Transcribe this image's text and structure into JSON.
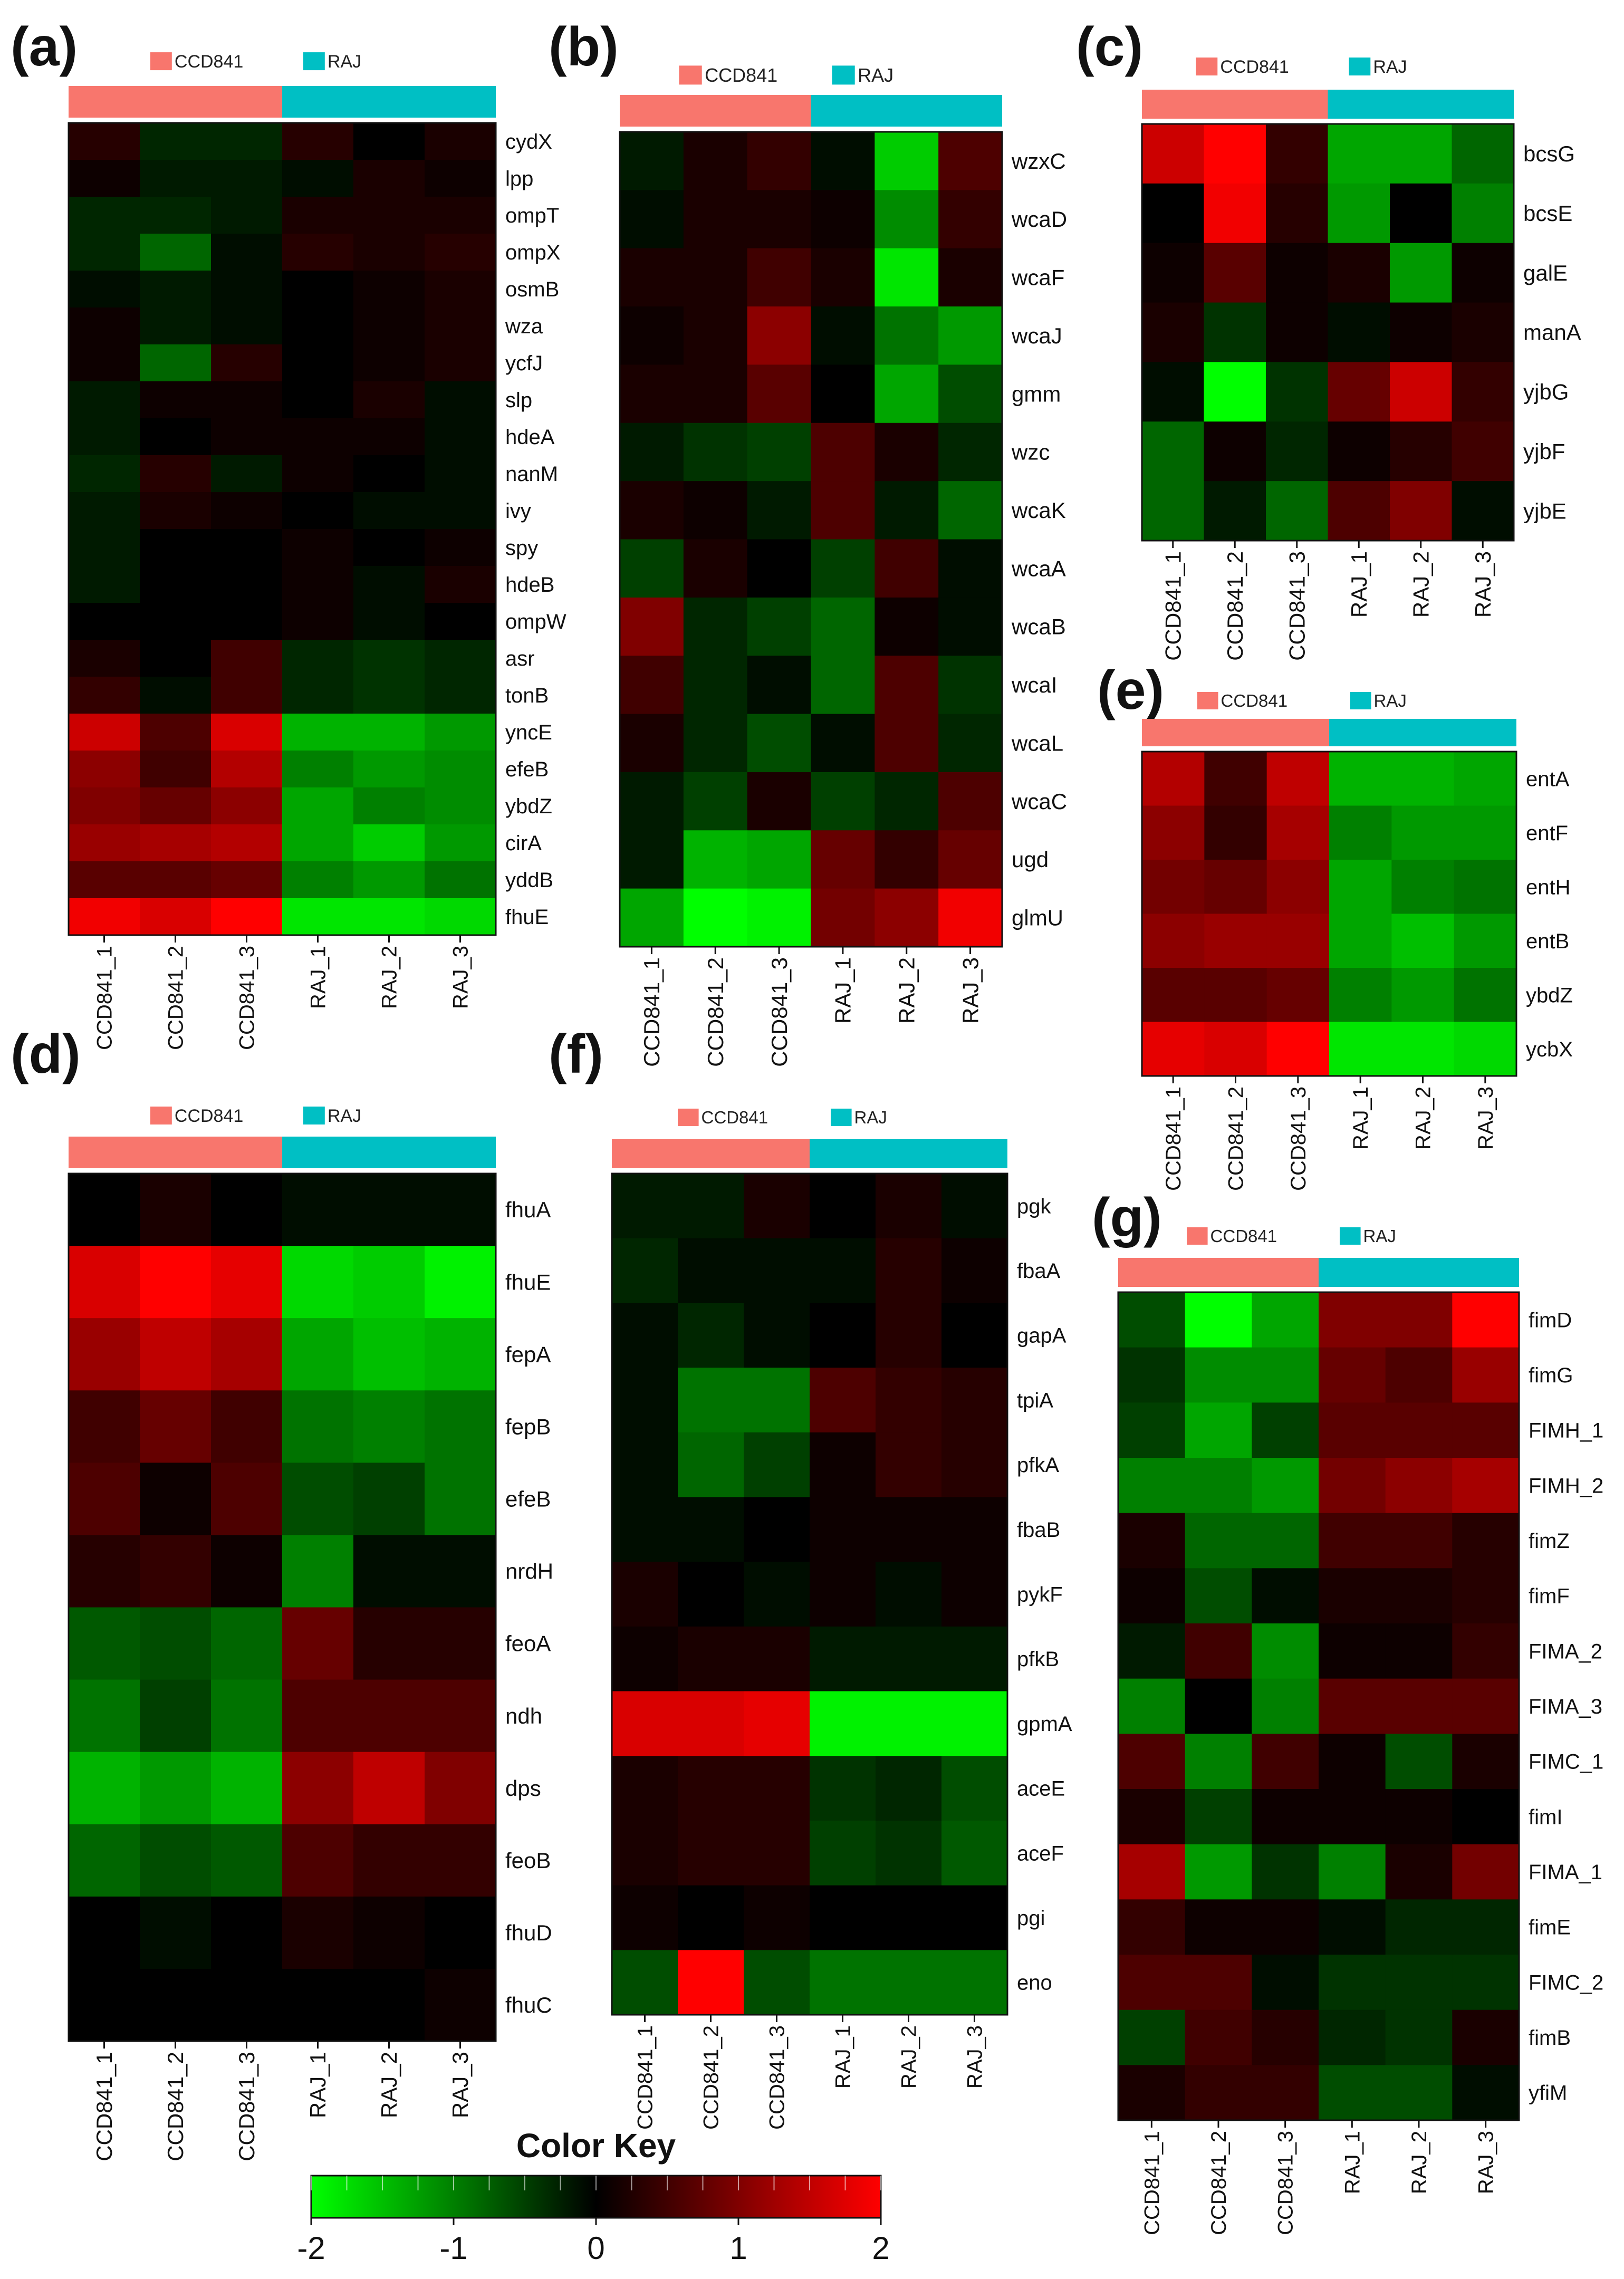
{
  "color_key": {
    "title": "Color Key",
    "ticks": [
      "-2",
      "-1",
      "0",
      "1",
      "2"
    ],
    "colors": [
      "#00ff00",
      "#000000",
      "#ff0000"
    ]
  },
  "group_labels": [
    "CCD841",
    "RAJ"
  ],
  "group_colors": [
    "#f8766d",
    "#00bfc4"
  ],
  "chart_data": [
    {
      "panel": "(a)",
      "type": "heatmap",
      "samples": [
        "CCD841_1",
        "CCD841_2",
        "CCD841_3",
        "RAJ_1",
        "RAJ_2",
        "RAJ_3"
      ],
      "genes": [
        "cydX",
        "lpp",
        "ompT",
        "ompX",
        "osmB",
        "wza",
        "ycfJ",
        "slp",
        "hdeA",
        "nanM",
        "ivy",
        "spy",
        "hdeB",
        "ompW",
        "asr",
        "tonB",
        "yncE",
        "efeB",
        "ybdZ",
        "cirA",
        "yddB",
        "fhuE"
      ],
      "values": [
        [
          0.3,
          -0.3,
          -0.3,
          0.3,
          0.0,
          0.2
        ],
        [
          0.1,
          -0.2,
          -0.2,
          -0.1,
          0.2,
          0.1
        ],
        [
          -0.3,
          -0.3,
          -0.2,
          0.2,
          0.2,
          0.2
        ],
        [
          -0.3,
          -0.8,
          -0.1,
          0.3,
          0.2,
          0.3
        ],
        [
          -0.1,
          -0.2,
          -0.1,
          0.0,
          0.1,
          0.2
        ],
        [
          0.1,
          -0.2,
          -0.1,
          0.0,
          0.1,
          0.2
        ],
        [
          0.1,
          -0.8,
          0.3,
          0.0,
          0.1,
          0.2
        ],
        [
          -0.2,
          0.1,
          0.1,
          0.0,
          0.2,
          -0.1
        ],
        [
          -0.2,
          0.0,
          0.1,
          0.1,
          0.1,
          -0.1
        ],
        [
          -0.3,
          0.3,
          -0.2,
          0.1,
          0.0,
          -0.1
        ],
        [
          -0.2,
          0.2,
          0.1,
          0.0,
          -0.1,
          -0.1
        ],
        [
          -0.2,
          0.0,
          0.0,
          0.1,
          0.0,
          0.1
        ],
        [
          -0.2,
          0.0,
          0.0,
          0.1,
          -0.1,
          0.2
        ],
        [
          0.0,
          0.0,
          0.0,
          0.1,
          -0.1,
          0.0
        ],
        [
          0.2,
          0.0,
          0.5,
          -0.3,
          -0.4,
          -0.3
        ],
        [
          0.4,
          -0.1,
          0.5,
          -0.3,
          -0.4,
          -0.3
        ],
        [
          1.6,
          0.6,
          1.7,
          -1.4,
          -1.4,
          -1.2
        ],
        [
          1.1,
          0.5,
          1.4,
          -1.0,
          -1.2,
          -1.1
        ],
        [
          1.0,
          0.8,
          1.1,
          -1.3,
          -1.0,
          -1.1
        ],
        [
          1.2,
          1.3,
          1.4,
          -1.3,
          -1.6,
          -1.2
        ],
        [
          0.7,
          0.7,
          0.8,
          -1.0,
          -1.2,
          -0.9
        ],
        [
          1.9,
          1.7,
          2.0,
          -1.8,
          -1.8,
          -1.7
        ]
      ]
    },
    {
      "panel": "(b)",
      "type": "heatmap",
      "samples": [
        "CCD841_1",
        "CCD841_2",
        "CCD841_3",
        "RAJ_1",
        "RAJ_2",
        "RAJ_3"
      ],
      "genes": [
        "wzxC",
        "wcaD",
        "wcaF",
        "wcaJ",
        "gmm",
        "wzc",
        "wcaK",
        "wcaA",
        "wcaB",
        "wcaI",
        "wcaL",
        "wcaC",
        "ugd",
        "glmU"
      ],
      "values": [
        [
          -0.2,
          0.2,
          0.4,
          -0.1,
          -1.6,
          0.6
        ],
        [
          -0.1,
          0.2,
          0.2,
          0.1,
          -1.1,
          0.4
        ],
        [
          0.2,
          0.2,
          0.5,
          0.2,
          -1.8,
          0.2
        ],
        [
          0.1,
          0.2,
          1.1,
          -0.1,
          -0.9,
          -1.2
        ],
        [
          0.2,
          0.2,
          0.7,
          0.0,
          -1.3,
          -0.6
        ],
        [
          -0.2,
          -0.4,
          -0.5,
          0.6,
          0.2,
          -0.3
        ],
        [
          0.2,
          0.1,
          -0.2,
          0.6,
          -0.2,
          -0.8
        ],
        [
          -0.5,
          0.2,
          0.0,
          -0.5,
          0.5,
          -0.1
        ],
        [
          1.0,
          -0.3,
          -0.5,
          -0.8,
          0.1,
          -0.1
        ],
        [
          0.5,
          -0.3,
          -0.1,
          -0.8,
          0.6,
          -0.4
        ],
        [
          0.2,
          -0.3,
          -0.6,
          -0.1,
          0.6,
          -0.3
        ],
        [
          -0.2,
          -0.5,
          0.2,
          -0.5,
          -0.3,
          0.6
        ],
        [
          -0.2,
          -1.4,
          -1.3,
          0.8,
          0.4,
          0.8
        ],
        [
          -1.3,
          -2.0,
          -1.9,
          0.9,
          1.1,
          1.9
        ]
      ]
    },
    {
      "panel": "(c)",
      "type": "heatmap",
      "samples": [
        "CCD841_1",
        "CCD841_2",
        "CCD841_3",
        "RAJ_1",
        "RAJ_2",
        "RAJ_3"
      ],
      "genes": [
        "bcsG",
        "bcsE",
        "galE",
        "manA",
        "yjbG",
        "yjbF",
        "yjbE"
      ],
      "values": [
        [
          1.6,
          2.0,
          0.4,
          -1.3,
          -1.3,
          -0.8
        ],
        [
          0.0,
          1.9,
          0.3,
          -1.2,
          0.0,
          -1.0
        ],
        [
          0.1,
          0.7,
          0.1,
          0.2,
          -1.2,
          0.1
        ],
        [
          0.2,
          -0.4,
          0.1,
          -0.1,
          0.1,
          0.2
        ],
        [
          -0.1,
          -2.0,
          -0.4,
          0.8,
          1.6,
          0.4
        ],
        [
          -0.8,
          0.1,
          -0.3,
          0.1,
          0.3,
          0.5
        ],
        [
          -0.8,
          -0.2,
          -0.8,
          0.6,
          1.0,
          -0.1
        ]
      ]
    },
    {
      "panel": "(d)",
      "type": "heatmap",
      "samples": [
        "CCD841_1",
        "CCD841_2",
        "CCD841_3",
        "RAJ_1",
        "RAJ_2",
        "RAJ_3"
      ],
      "genes": [
        "fhuA",
        "fhuE",
        "fepA",
        "fepB",
        "efeB",
        "nrdH",
        "feoA",
        "ndh",
        "dps",
        "feoB",
        "fhuD",
        "fhuC"
      ],
      "values": [
        [
          0.0,
          0.2,
          0.0,
          -0.1,
          -0.1,
          -0.1
        ],
        [
          1.7,
          2.0,
          1.8,
          -1.7,
          -1.6,
          -1.9
        ],
        [
          1.2,
          1.5,
          1.3,
          -1.3,
          -1.5,
          -1.4
        ],
        [
          0.5,
          0.8,
          0.5,
          -0.9,
          -1.0,
          -0.9
        ],
        [
          0.6,
          0.1,
          0.6,
          -0.6,
          -0.5,
          -0.9
        ],
        [
          0.3,
          0.4,
          0.1,
          -1.0,
          -0.1,
          -0.1
        ],
        [
          -0.7,
          -0.6,
          -0.8,
          0.8,
          0.3,
          0.3
        ],
        [
          -0.9,
          -0.5,
          -0.9,
          0.6,
          0.6,
          0.6
        ],
        [
          -1.4,
          -1.2,
          -1.4,
          1.1,
          1.5,
          1.0
        ],
        [
          -0.8,
          -0.6,
          -0.7,
          0.6,
          0.4,
          0.4
        ],
        [
          0.0,
          -0.1,
          0.0,
          0.2,
          0.1,
          0.0
        ],
        [
          0.0,
          0.0,
          0.0,
          0.0,
          0.0,
          0.1
        ]
      ]
    },
    {
      "panel": "(e)",
      "type": "heatmap",
      "samples": [
        "CCD841_1",
        "CCD841_2",
        "CCD841_3",
        "RAJ_1",
        "RAJ_2",
        "RAJ_3"
      ],
      "genes": [
        "entA",
        "entF",
        "entH",
        "entB",
        "ybdZ",
        "ycbX"
      ],
      "values": [
        [
          1.4,
          0.5,
          1.5,
          -1.4,
          -1.4,
          -1.3
        ],
        [
          1.1,
          0.4,
          1.3,
          -1.0,
          -1.2,
          -1.2
        ],
        [
          0.9,
          0.8,
          1.1,
          -1.3,
          -1.0,
          -0.9
        ],
        [
          1.1,
          1.2,
          1.2,
          -1.3,
          -1.5,
          -1.2
        ],
        [
          0.7,
          0.7,
          0.8,
          -1.0,
          -1.2,
          -0.9
        ],
        [
          1.8,
          1.7,
          2.0,
          -1.8,
          -1.8,
          -1.7
        ]
      ]
    },
    {
      "panel": "(f)",
      "type": "heatmap",
      "samples": [
        "CCD841_1",
        "CCD841_2",
        "CCD841_3",
        "RAJ_1",
        "RAJ_2",
        "RAJ_3"
      ],
      "genes": [
        "pgk",
        "fbaA",
        "gapA",
        "tpiA",
        "pfkA",
        "fbaB",
        "pykF",
        "pfkB",
        "gpmA",
        "aceE",
        "aceF",
        "pgi",
        "eno"
      ],
      "values": [
        [
          -0.2,
          -0.2,
          0.2,
          0.0,
          0.2,
          -0.1
        ],
        [
          -0.3,
          -0.1,
          -0.1,
          -0.1,
          0.3,
          0.1
        ],
        [
          -0.1,
          -0.3,
          -0.1,
          0.0,
          0.3,
          0.0
        ],
        [
          -0.1,
          -0.9,
          -0.9,
          0.6,
          0.4,
          0.3
        ],
        [
          -0.1,
          -0.8,
          -0.5,
          0.1,
          0.4,
          0.3
        ],
        [
          -0.1,
          -0.1,
          0.0,
          0.1,
          0.1,
          0.1
        ],
        [
          0.2,
          0.0,
          -0.1,
          0.1,
          -0.1,
          0.1
        ],
        [
          0.1,
          0.2,
          0.2,
          -0.2,
          -0.2,
          -0.2
        ],
        [
          1.7,
          1.7,
          1.8,
          -1.9,
          -1.9,
          -1.9
        ],
        [
          0.2,
          0.3,
          0.3,
          -0.4,
          -0.3,
          -0.6
        ],
        [
          0.2,
          0.3,
          0.3,
          -0.5,
          -0.4,
          -0.7
        ],
        [
          0.1,
          0.0,
          0.1,
          0.0,
          0.0,
          0.0
        ],
        [
          -0.6,
          2.0,
          -0.6,
          -0.9,
          -0.9,
          -0.9
        ]
      ]
    },
    {
      "panel": "(g)",
      "type": "heatmap",
      "samples": [
        "CCD841_1",
        "CCD841_2",
        "CCD841_3",
        "RAJ_1",
        "RAJ_2",
        "RAJ_3"
      ],
      "genes": [
        "fimD",
        "fimG",
        "FIMH_1",
        "FIMH_2",
        "fimZ",
        "fimF",
        "FIMA_2",
        "FIMA_3",
        "FIMC_1",
        "fimI",
        "FIMA_1",
        "fimE",
        "FIMC_2",
        "fimB",
        "yfiM"
      ],
      "values": [
        [
          -0.6,
          -2.0,
          -1.3,
          1.0,
          1.0,
          2.0
        ],
        [
          -0.4,
          -1.1,
          -1.1,
          0.8,
          0.6,
          1.2
        ],
        [
          -0.5,
          -1.3,
          -0.5,
          0.7,
          0.7,
          0.7
        ],
        [
          -1.0,
          -1.0,
          -1.2,
          0.9,
          1.1,
          1.3
        ],
        [
          0.2,
          -0.8,
          -0.8,
          0.5,
          0.5,
          0.3
        ],
        [
          0.1,
          -0.6,
          -0.1,
          0.2,
          0.2,
          0.3
        ],
        [
          -0.2,
          0.5,
          -1.1,
          0.1,
          0.1,
          0.4
        ],
        [
          -1.0,
          0.0,
          -1.0,
          0.7,
          0.7,
          0.7
        ],
        [
          0.6,
          -1.0,
          0.5,
          0.1,
          -0.6,
          0.2
        ],
        [
          0.2,
          -0.5,
          0.1,
          0.1,
          0.1,
          0.0
        ],
        [
          1.3,
          -1.2,
          -0.4,
          -1.0,
          0.2,
          0.9
        ],
        [
          0.4,
          0.1,
          0.1,
          -0.1,
          -0.3,
          -0.3
        ],
        [
          0.6,
          0.6,
          -0.1,
          -0.4,
          -0.4,
          -0.4
        ],
        [
          -0.5,
          0.5,
          0.3,
          -0.3,
          -0.4,
          0.2
        ],
        [
          0.2,
          0.4,
          0.4,
          -0.6,
          -0.6,
          -0.1
        ]
      ]
    }
  ]
}
